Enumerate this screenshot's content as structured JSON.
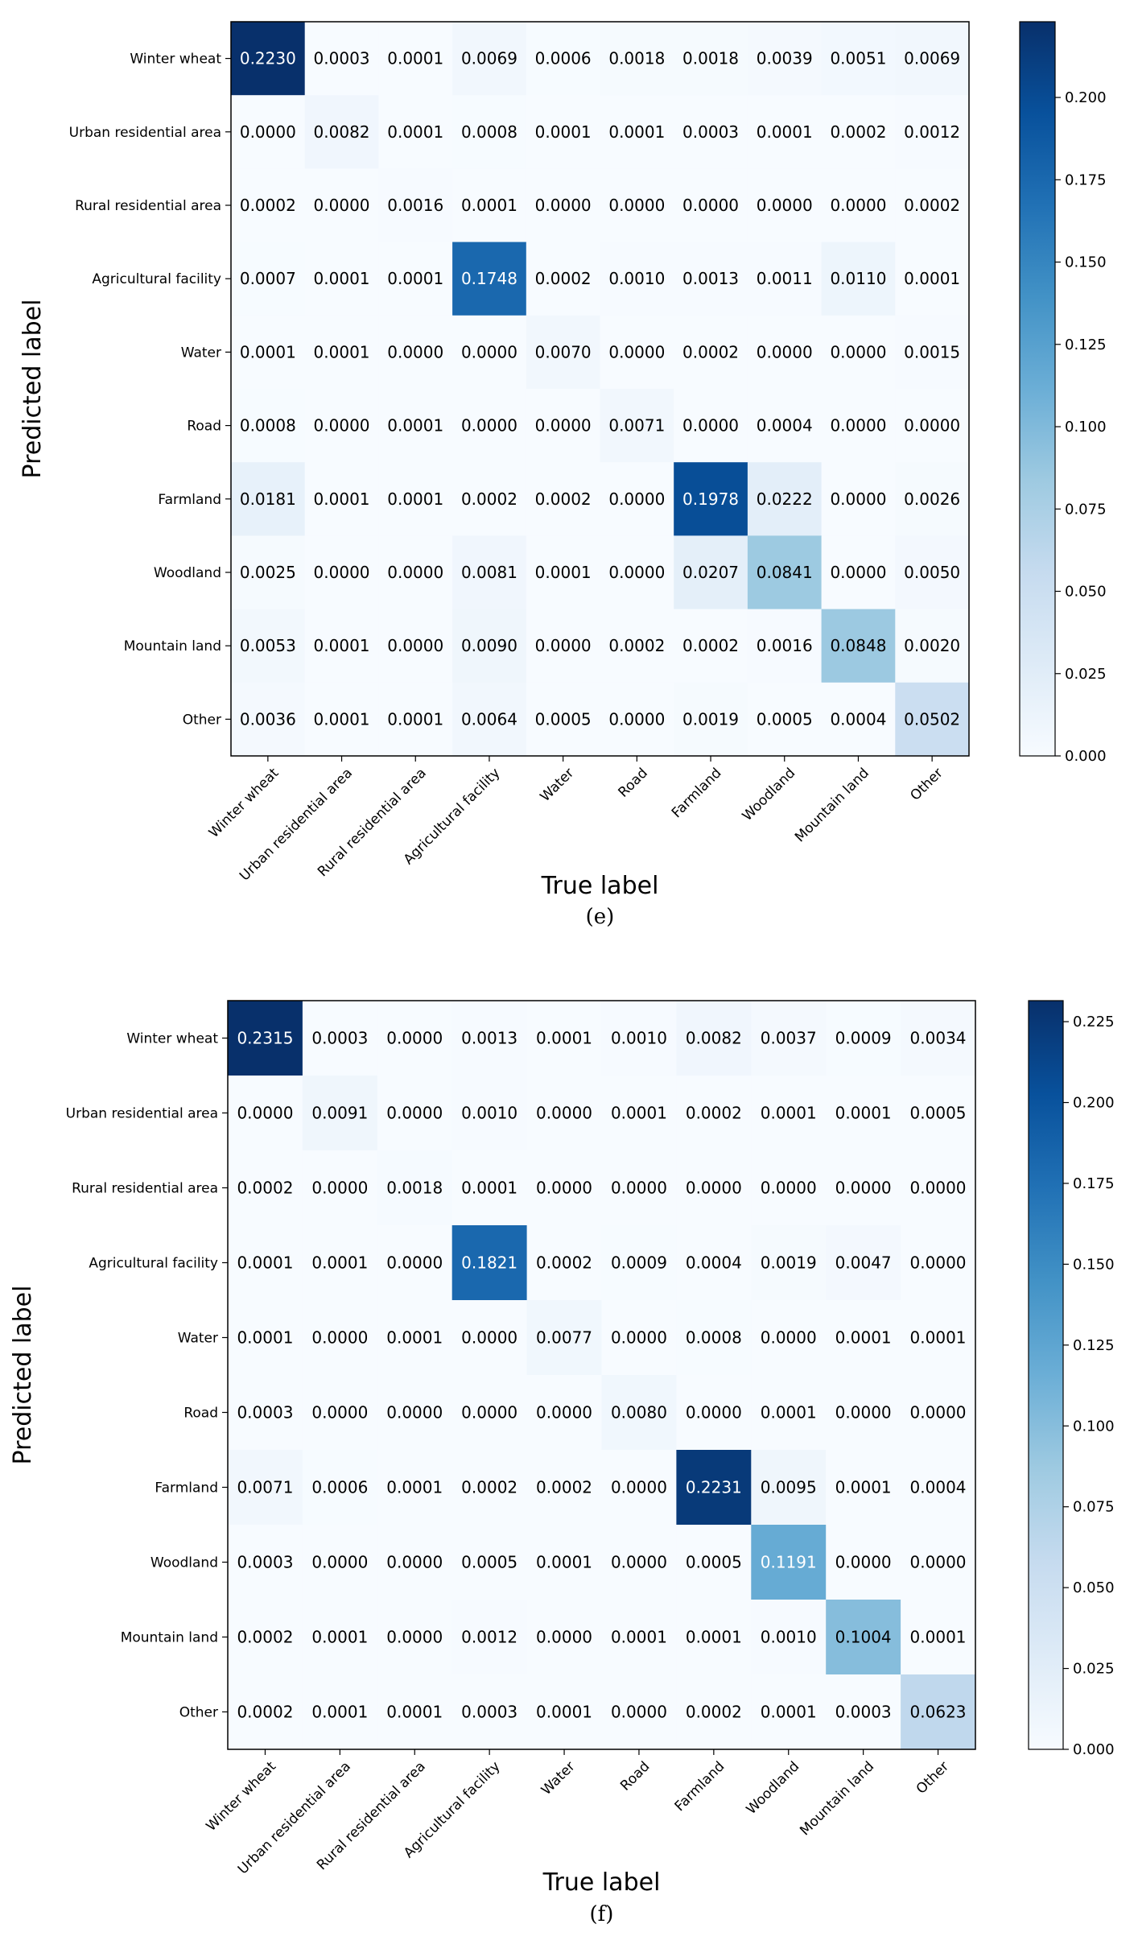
{
  "chart_data": [
    {
      "type": "heatmap",
      "panel_label": "(e)",
      "xlabel": "True label",
      "ylabel": "Predicted label",
      "x_categories": [
        "Winter wheat",
        "Urban residential area",
        "Rural residential area",
        "Agricultural facility",
        "Water",
        "Road",
        "Farmland",
        "Woodland",
        "Mountain land",
        "Other"
      ],
      "y_categories": [
        "Winter wheat",
        "Urban residential area",
        "Rural residential area",
        "Agricultural facility",
        "Water",
        "Road",
        "Farmland",
        "Woodland",
        "Mountain land",
        "Other"
      ],
      "values": [
        [
          "0.2230",
          "0.0003",
          "0.0001",
          "0.0069",
          "0.0006",
          "0.0018",
          "0.0018",
          "0.0039",
          "0.0051",
          "0.0069"
        ],
        [
          "0.0000",
          "0.0082",
          "0.0001",
          "0.0008",
          "0.0001",
          "0.0001",
          "0.0003",
          "0.0001",
          "0.0002",
          "0.0012"
        ],
        [
          "0.0002",
          "0.0000",
          "0.0016",
          "0.0001",
          "0.0000",
          "0.0000",
          "0.0000",
          "0.0000",
          "0.0000",
          "0.0002"
        ],
        [
          "0.0007",
          "0.0001",
          "0.0001",
          "0.1748",
          "0.0002",
          "0.0010",
          "0.0013",
          "0.0011",
          "0.0110",
          "0.0001"
        ],
        [
          "0.0001",
          "0.0001",
          "0.0000",
          "0.0000",
          "0.0070",
          "0.0000",
          "0.0002",
          "0.0000",
          "0.0000",
          "0.0015"
        ],
        [
          "0.0008",
          "0.0000",
          "0.0001",
          "0.0000",
          "0.0000",
          "0.0071",
          "0.0000",
          "0.0004",
          "0.0000",
          "0.0000"
        ],
        [
          "0.0181",
          "0.0001",
          "0.0001",
          "0.0002",
          "0.0002",
          "0.0000",
          "0.1978",
          "0.0222",
          "0.0000",
          "0.0026"
        ],
        [
          "0.0025",
          "0.0000",
          "0.0000",
          "0.0081",
          "0.0001",
          "0.0000",
          "0.0207",
          "0.0841",
          "0.0000",
          "0.0050"
        ],
        [
          "0.0053",
          "0.0001",
          "0.0000",
          "0.0090",
          "0.0000",
          "0.0002",
          "0.0002",
          "0.0016",
          "0.0848",
          "0.0020"
        ],
        [
          "0.0036",
          "0.0001",
          "0.0001",
          "0.0064",
          "0.0005",
          "0.0000",
          "0.0019",
          "0.0005",
          "0.0004",
          "0.0502"
        ]
      ],
      "colorbar": {
        "range": [
          0,
          0.223
        ],
        "ticks": [
          "0.000",
          "0.025",
          "0.050",
          "0.075",
          "0.100",
          "0.125",
          "0.150",
          "0.175",
          "0.200"
        ]
      }
    },
    {
      "type": "heatmap",
      "panel_label": "(f)",
      "xlabel": "True label",
      "ylabel": "Predicted label",
      "x_categories": [
        "Winter wheat",
        "Urban residential area",
        "Rural residential area",
        "Agricultural facility",
        "Water",
        "Road",
        "Farmland",
        "Woodland",
        "Mountain land",
        "Other"
      ],
      "y_categories": [
        "Winter wheat",
        "Urban residential area",
        "Rural residential area",
        "Agricultural facility",
        "Water",
        "Road",
        "Farmland",
        "Woodland",
        "Mountain land",
        "Other"
      ],
      "values": [
        [
          "0.2315",
          "0.0003",
          "0.0000",
          "0.0013",
          "0.0001",
          "0.0010",
          "0.0082",
          "0.0037",
          "0.0009",
          "0.0034"
        ],
        [
          "0.0000",
          "0.0091",
          "0.0000",
          "0.0010",
          "0.0000",
          "0.0001",
          "0.0002",
          "0.0001",
          "0.0001",
          "0.0005"
        ],
        [
          "0.0002",
          "0.0000",
          "0.0018",
          "0.0001",
          "0.0000",
          "0.0000",
          "0.0000",
          "0.0000",
          "0.0000",
          "0.0000"
        ],
        [
          "0.0001",
          "0.0001",
          "0.0000",
          "0.1821",
          "0.0002",
          "0.0009",
          "0.0004",
          "0.0019",
          "0.0047",
          "0.0000"
        ],
        [
          "0.0001",
          "0.0000",
          "0.0001",
          "0.0000",
          "0.0077",
          "0.0000",
          "0.0008",
          "0.0000",
          "0.0001",
          "0.0001"
        ],
        [
          "0.0003",
          "0.0000",
          "0.0000",
          "0.0000",
          "0.0000",
          "0.0080",
          "0.0000",
          "0.0001",
          "0.0000",
          "0.0000"
        ],
        [
          "0.0071",
          "0.0006",
          "0.0001",
          "0.0002",
          "0.0002",
          "0.0000",
          "0.2231",
          "0.0095",
          "0.0001",
          "0.0004"
        ],
        [
          "0.0003",
          "0.0000",
          "0.0000",
          "0.0005",
          "0.0001",
          "0.0000",
          "0.0005",
          "0.1191",
          "0.0000",
          "0.0000"
        ],
        [
          "0.0002",
          "0.0001",
          "0.0000",
          "0.0012",
          "0.0000",
          "0.0001",
          "0.0001",
          "0.0010",
          "0.1004",
          "0.0001"
        ],
        [
          "0.0002",
          "0.0001",
          "0.0001",
          "0.0003",
          "0.0001",
          "0.0000",
          "0.0002",
          "0.0001",
          "0.0003",
          "0.0623"
        ]
      ],
      "colorbar": {
        "range": [
          0,
          0.2315
        ],
        "ticks": [
          "0.000",
          "0.025",
          "0.050",
          "0.075",
          "0.100",
          "0.125",
          "0.150",
          "0.175",
          "0.200",
          "0.225"
        ]
      }
    }
  ]
}
